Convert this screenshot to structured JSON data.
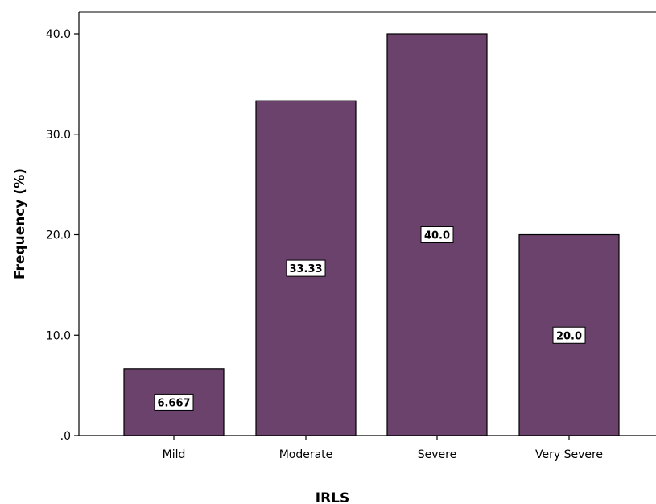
{
  "chart_data": {
    "type": "bar",
    "categories": [
      "Mild",
      "Moderate",
      "Severe",
      "Very Severe"
    ],
    "values": [
      6.667,
      33.33,
      40.0,
      20.0
    ],
    "data_labels": [
      "6.667",
      "33.33",
      "40.0",
      "20.0"
    ],
    "xlabel": "IRLS",
    "ylabel": "Frequency (%)",
    "ylim": [
      0,
      42
    ],
    "yticks": [
      0,
      10,
      20,
      30,
      40
    ],
    "ytick_labels": [
      ".0",
      "10.0",
      "20.0",
      "30.0",
      "40.0"
    ],
    "grid": false,
    "bar_color": "#6b426b"
  }
}
